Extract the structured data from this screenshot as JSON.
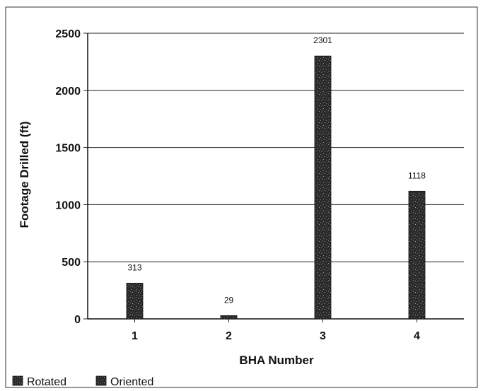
{
  "chart_data": {
    "type": "bar",
    "title": "",
    "xlabel": "BHA Number",
    "ylabel": "Footage Drilled (ft)",
    "categories": [
      "1",
      "2",
      "3",
      "4"
    ],
    "series": [
      {
        "name": "Rotated",
        "values": [
          313,
          29,
          2301,
          1118
        ],
        "color": "#2a2a2a"
      },
      {
        "name": "Oriented",
        "values": [
          0,
          0,
          0,
          0
        ],
        "color": "#1a1a1a"
      }
    ],
    "data_labels": [
      "313",
      "29",
      "2301",
      "1118"
    ],
    "ylim": [
      0,
      2500
    ],
    "yticks": [
      0,
      500,
      1000,
      1500,
      2000,
      2500
    ],
    "ytick_labels": [
      "0",
      "500",
      "1000",
      "1500",
      "2000",
      "2500"
    ],
    "grid": true,
    "legend_position": "bottom-left"
  }
}
